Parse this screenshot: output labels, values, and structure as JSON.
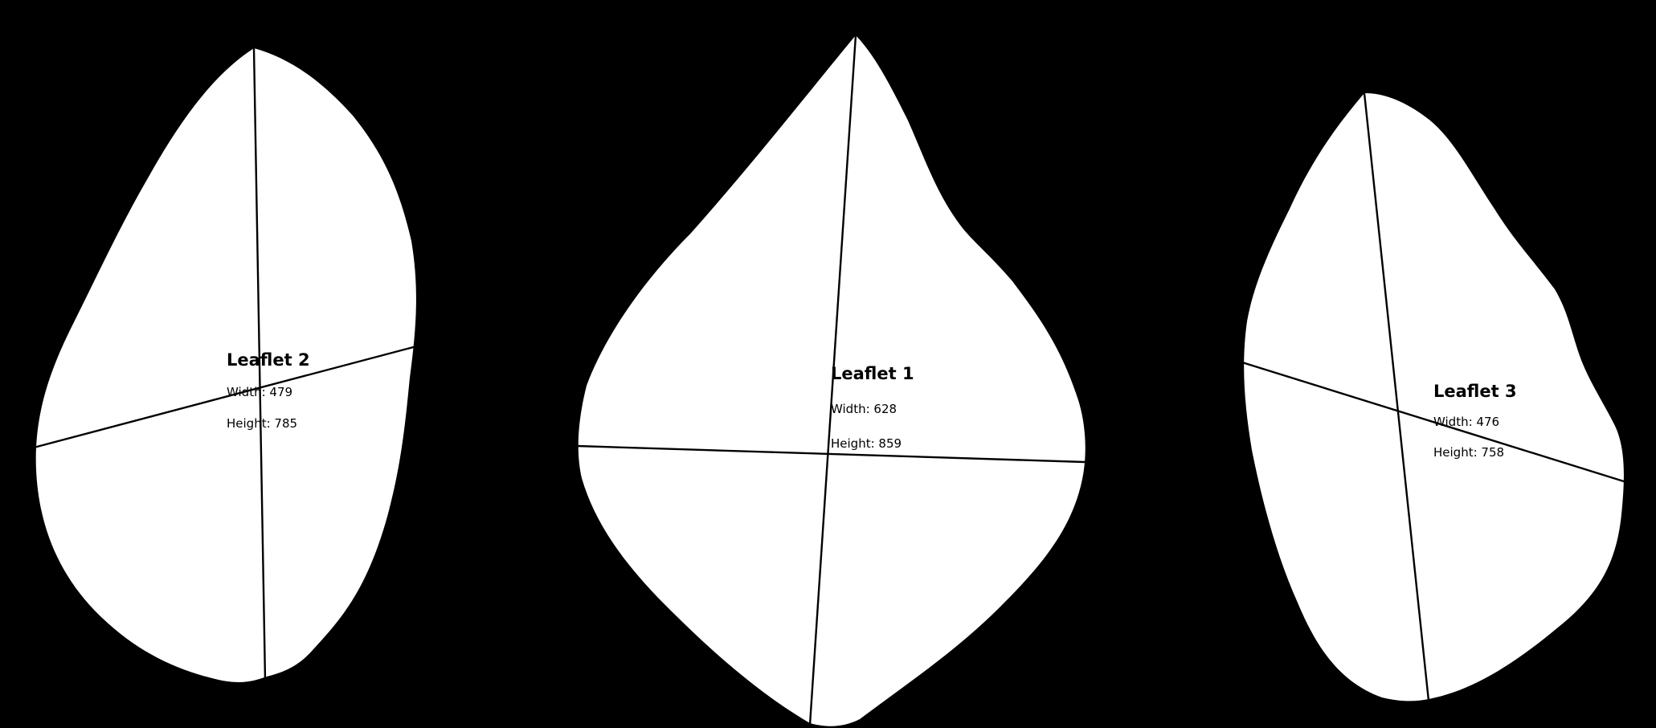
{
  "colors": {
    "background": "#000000",
    "leaf_fill": "#ffffff",
    "line": "#000000",
    "text": "#000000"
  },
  "leaflets": [
    {
      "title": "Leaflet 2",
      "width_text": "Width: 479",
      "height_text": "Height: 785"
    },
    {
      "title": "Leaflet 1",
      "width_text": "Width: 628",
      "height_text": "Height: 859"
    },
    {
      "title": "Leaflet 3",
      "width_text": "Width: 476",
      "height_text": "Height: 758"
    }
  ]
}
